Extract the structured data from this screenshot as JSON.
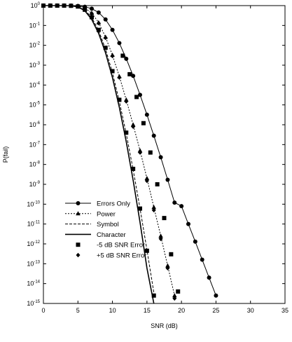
{
  "chart_data": {
    "type": "line",
    "xlabel": "SNR (dB)",
    "ylabel": "P(fail)",
    "xlim": [
      0,
      35
    ],
    "ylim": [
      1e-15,
      1
    ],
    "yscale": "log",
    "grid": false,
    "legend_position": "bottom-left",
    "x_ticks": [
      "0",
      "5",
      "10",
      "15",
      "20",
      "25",
      "30",
      "35"
    ],
    "y_tick_base": "10",
    "y_tick_exponents": [
      "0",
      "-1",
      "-2",
      "-3",
      "-4",
      "-5",
      "-6",
      "-7",
      "-8",
      "-9",
      "-10",
      "-11",
      "-12",
      "-13",
      "-14",
      "-15"
    ],
    "series": [
      {
        "name": "Errors Only",
        "style": "solid-circle",
        "x": [
          0,
          1,
          2,
          3,
          4,
          5,
          6,
          7,
          8,
          9,
          10,
          11,
          12,
          13,
          14,
          15,
          16,
          17,
          18,
          19,
          20,
          21,
          22,
          23,
          24,
          25,
          26,
          27,
          28,
          29,
          30,
          31,
          32,
          33,
          34,
          35
        ],
        "y": [
          1,
          1,
          1,
          1,
          0.99,
          0.96,
          0.88,
          0.7,
          0.45,
          0.2,
          0.06,
          0.013,
          0.0021,
          0.00029,
          3.2e-05,
          3.2e-06,
          2.8e-07,
          2.3e-08,
          1.7e-09,
          1.2e-10,
          8e-11,
          1e-11,
          1.3e-12,
          1.6e-13,
          2e-14,
          2.5e-15,
          null,
          null,
          null,
          null,
          null,
          null,
          null,
          null,
          null,
          null
        ]
      },
      {
        "name": "Power",
        "style": "dotted-triangle",
        "x": [
          0,
          1,
          2,
          3,
          4,
          5,
          6,
          7,
          8,
          9,
          10,
          11,
          12,
          13,
          14,
          15,
          16,
          17,
          18,
          19,
          20,
          21,
          22,
          23,
          24,
          25,
          26,
          27,
          28,
          29,
          30,
          31,
          32,
          33,
          34,
          35
        ],
        "y": [
          1,
          1,
          1,
          1,
          0.99,
          0.93,
          0.75,
          0.42,
          0.14,
          0.026,
          0.0032,
          0.00027,
          1.8e-05,
          1e-06,
          5e-08,
          2e-09,
          7e-11,
          2.5e-12,
          8e-14,
          2.5e-15,
          null,
          null,
          null,
          null,
          null,
          null,
          null,
          null,
          null,
          null,
          null,
          null,
          null,
          null,
          null,
          null
        ]
      },
      {
        "name": "Symbol",
        "style": "dashed",
        "x": [
          0,
          1,
          2,
          3,
          4,
          5,
          6,
          7,
          8,
          9,
          10,
          11,
          12,
          13,
          14,
          15,
          16,
          17,
          18,
          19,
          20,
          21,
          22,
          23,
          24,
          25,
          26,
          27,
          28,
          29,
          30,
          31,
          32,
          33,
          34,
          35
        ],
        "y": [
          1,
          1,
          1,
          1,
          0.98,
          0.88,
          0.6,
          0.25,
          0.055,
          0.0065,
          0.00042,
          1.5e-05,
          3.5e-07,
          5.5e-09,
          6e-11,
          5e-13,
          3.5e-15,
          null,
          null,
          null,
          null,
          null,
          null,
          null,
          null,
          null,
          null,
          null,
          null,
          null,
          null,
          null,
          null,
          null,
          null,
          null
        ]
      },
      {
        "name": "Character",
        "style": "solid",
        "x": [
          0,
          1,
          2,
          3,
          4,
          5,
          6,
          7,
          8,
          9,
          10,
          11,
          12,
          13,
          14,
          15,
          16,
          17,
          18,
          19,
          20,
          21,
          22,
          23,
          24,
          25,
          26,
          27,
          28,
          29,
          30,
          31,
          32,
          33,
          34,
          35
        ],
        "y": [
          1,
          1,
          1,
          1,
          0.98,
          0.86,
          0.55,
          0.2,
          0.04,
          0.0042,
          0.00024,
          7.5e-06,
          1.4e-07,
          1.6e-09,
          1.2e-11,
          6e-14,
          2e-16,
          null,
          null,
          null,
          null,
          null,
          null,
          null,
          null,
          null,
          null,
          null,
          null,
          null,
          null,
          null,
          null,
          null,
          null,
          null
        ]
      },
      {
        "name": "-5 dB SNR Error",
        "style": "square-marker",
        "points": [
          [
            0,
            1
          ],
          [
            1,
            1
          ],
          [
            2,
            1
          ],
          [
            3,
            1
          ],
          [
            4,
            0.98
          ],
          [
            5,
            0.9
          ],
          [
            6,
            0.62
          ],
          [
            7,
            0.26
          ],
          [
            8,
            0.06
          ],
          [
            9,
            0.0075
          ],
          [
            10,
            0.0005
          ],
          [
            11,
            1.8e-05
          ],
          [
            12,
            4e-07
          ],
          [
            13,
            6e-09
          ],
          [
            14,
            6e-11
          ],
          [
            15,
            4.5e-13
          ],
          [
            16,
            2.5e-15
          ],
          [
            11.5,
            0.003
          ],
          [
            12.5,
            0.00035
          ],
          [
            13.5,
            2.5e-05
          ],
          [
            14.5,
            1.2e-06
          ],
          [
            15.5,
            4e-08
          ],
          [
            16.5,
            1e-09
          ],
          [
            17.5,
            2e-11
          ],
          [
            18.5,
            3e-13
          ],
          [
            19.5,
            4e-15
          ]
        ]
      },
      {
        "name": "+5 dB SNR Error",
        "style": "diamond-marker",
        "points": [
          [
            0,
            1
          ],
          [
            1,
            1
          ],
          [
            2,
            1
          ],
          [
            3,
            1
          ],
          [
            4,
            0.99
          ],
          [
            5,
            0.93
          ],
          [
            6,
            0.74
          ],
          [
            7,
            0.4
          ],
          [
            8,
            0.13
          ],
          [
            9,
            0.024
          ],
          [
            10,
            0.0029
          ],
          [
            11,
            0.00024
          ],
          [
            12,
            1.5e-05
          ],
          [
            13,
            8e-07
          ],
          [
            14,
            4e-08
          ],
          [
            15,
            1.5e-09
          ],
          [
            16,
            5e-11
          ],
          [
            17,
            1.8e-12
          ],
          [
            18,
            6e-14
          ],
          [
            19,
            1.8e-15
          ]
        ]
      }
    ]
  }
}
